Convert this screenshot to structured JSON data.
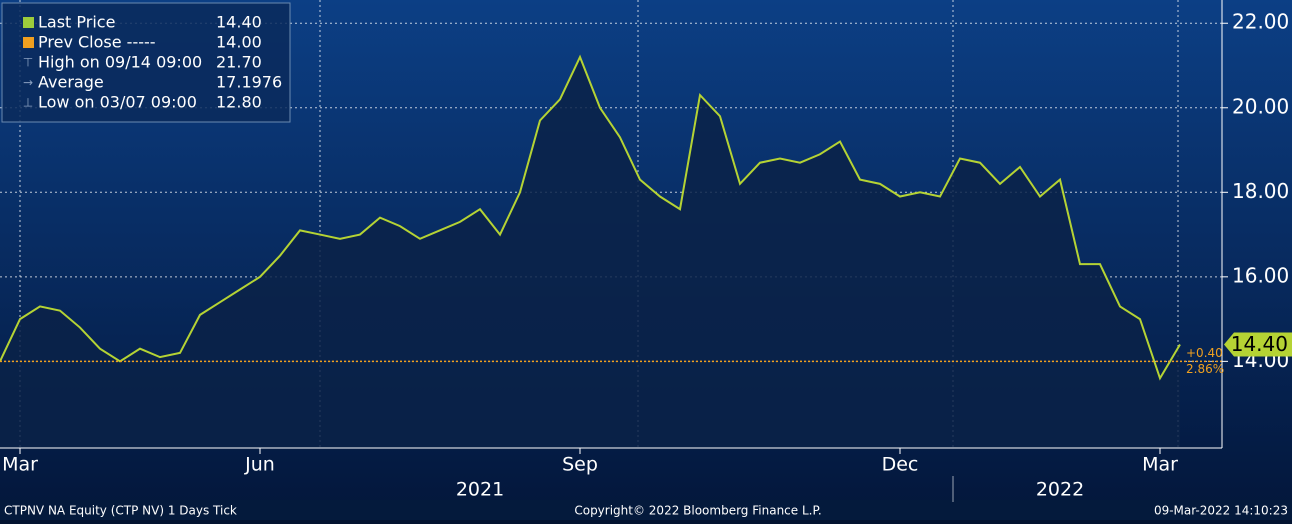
{
  "chart_data": {
    "type": "line",
    "categories": [
      null,
      "Mar",
      null,
      null,
      null,
      null,
      null,
      null,
      null,
      null,
      null,
      null,
      null,
      "Jun",
      null,
      null,
      null,
      null,
      null,
      null,
      null,
      null,
      null,
      null,
      null,
      null,
      null,
      null,
      null,
      "Sep",
      null,
      null,
      null,
      null,
      null,
      null,
      null,
      null,
      null,
      null,
      null,
      null,
      null,
      null,
      null,
      "Dec",
      null,
      null,
      null,
      null,
      null,
      null,
      null,
      null,
      null,
      null,
      null,
      null,
      "Mar",
      null
    ],
    "years": [
      null,
      null,
      null,
      null,
      null,
      null,
      null,
      null,
      null,
      null,
      null,
      null,
      null,
      null,
      null,
      null,
      null,
      null,
      null,
      null,
      null,
      null,
      null,
      null,
      "2021",
      null,
      null,
      null,
      null,
      null,
      null,
      null,
      null,
      null,
      null,
      null,
      null,
      null,
      null,
      null,
      null,
      null,
      null,
      null,
      null,
      null,
      null,
      null,
      null,
      null,
      null,
      null,
      null,
      "2022",
      null,
      null,
      null,
      null,
      null,
      null
    ],
    "series": [
      {
        "name": "Last Price",
        "color": "#b5d334",
        "values": [
          14.0,
          15.0,
          15.3,
          15.2,
          14.8,
          14.3,
          14.0,
          14.3,
          14.1,
          14.2,
          15.1,
          15.4,
          15.7,
          16.0,
          16.5,
          17.1,
          17.0,
          16.9,
          17.0,
          17.4,
          17.2,
          16.9,
          17.1,
          17.3,
          17.6,
          17.0,
          18.0,
          19.7,
          20.2,
          21.2,
          20.0,
          19.3,
          18.3,
          17.9,
          17.6,
          20.3,
          19.8,
          18.2,
          18.7,
          18.8,
          18.7,
          18.9,
          19.2,
          18.3,
          18.2,
          17.9,
          18.0,
          17.9,
          18.8,
          18.7,
          18.2,
          18.6,
          17.9,
          18.3,
          16.3,
          16.3,
          15.3,
          15.0,
          13.6,
          14.4
        ]
      }
    ],
    "reference_line": {
      "value": 14,
      "color": "#f0a020"
    },
    "ylim": [
      11.95,
      22.55
    ],
    "yticks": [
      {
        "value": 14,
        "label": "14.00"
      },
      {
        "value": 16,
        "label": "16.00"
      },
      {
        "value": 18,
        "label": "18.00"
      },
      {
        "value": 20,
        "label": "20.00"
      },
      {
        "value": 22,
        "label": "22.00"
      }
    ],
    "grid": true,
    "legend": [
      {
        "name": "Last Price",
        "value": "14.40",
        "color": "#9ccc3c"
      },
      {
        "name": "Prev Close -----",
        "value": "14.00",
        "color": "#f0a020"
      },
      {
        "name": "High on 09/14 09:00",
        "value": "21.70"
      },
      {
        "name": "Average",
        "value": "17.1976"
      },
      {
        "name": "Low on 03/07 09:00",
        "value": "12.80"
      }
    ],
    "change": [
      "+0.40",
      "2.86%"
    ],
    "footer": {
      "left": "CTPNV NA Equity (CTP NV) 1 Days  Tick",
      "center": "Copyright© 2022 Bloomberg Finance L.P.",
      "right": "09-Mar-2022 14:10:23"
    }
  }
}
